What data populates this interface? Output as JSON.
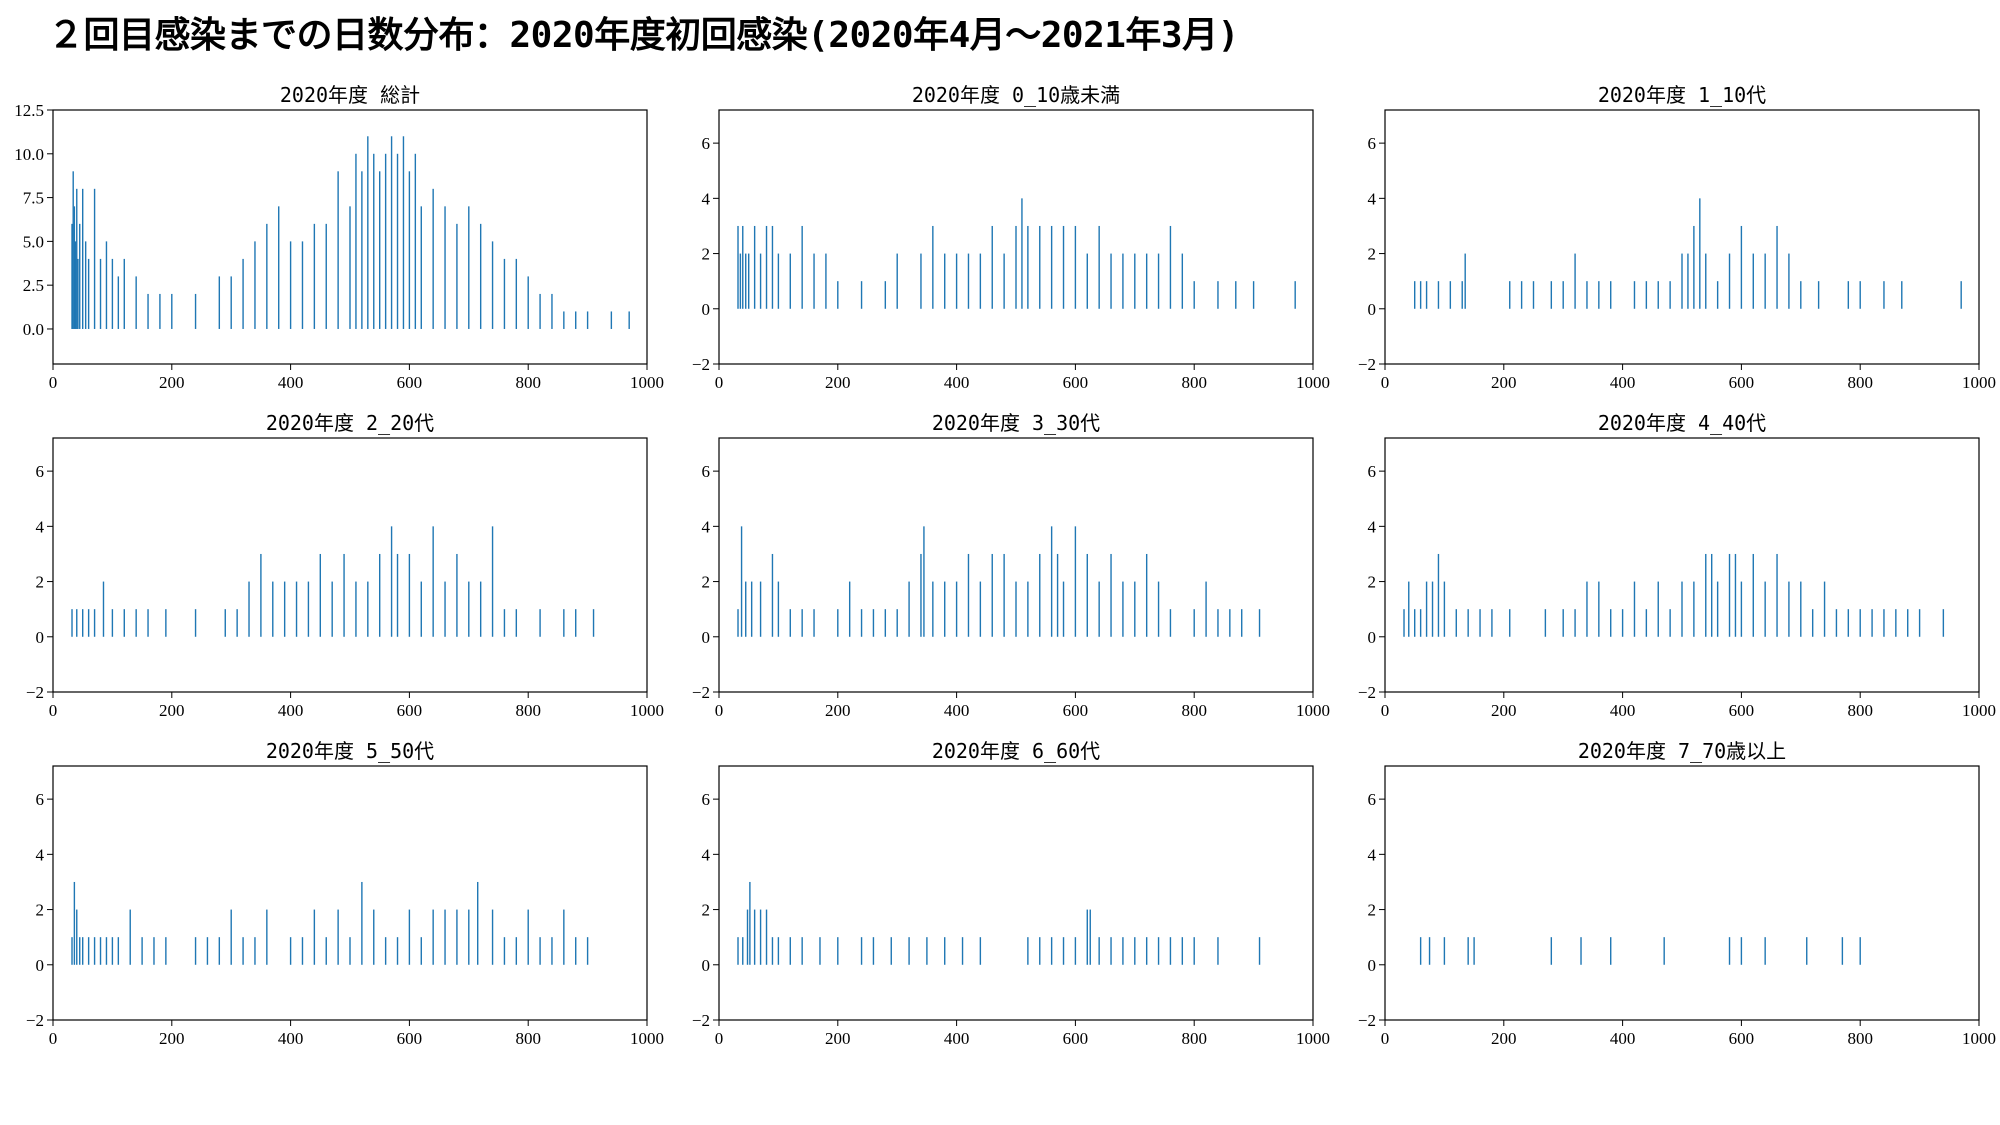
{
  "page": {
    "title": "２回目感染までの日数分布：2020年度初回感染(2020年4月～2021年3月)"
  },
  "colors": {
    "bar": "#1f77b4",
    "axis": "#000000"
  },
  "chart_data": [
    {
      "type": "bar",
      "title": "2020年度 総計",
      "xlim": [
        0,
        1000
      ],
      "ylim": [
        -2,
        12.5
      ],
      "xticks": [
        0,
        200,
        400,
        600,
        800,
        1000
      ],
      "xtick_labels": [
        "0",
        "200",
        "400",
        "600",
        "800",
        "1000"
      ],
      "yticks": [
        0,
        2.5,
        5,
        7.5,
        10,
        12.5
      ],
      "ytick_labels": [
        "0.0",
        "2.5",
        "5.0",
        "7.5",
        "10.0",
        "12.5"
      ],
      "x": [
        32,
        34,
        36,
        38,
        40,
        42,
        45,
        50,
        55,
        60,
        70,
        80,
        90,
        100,
        110,
        120,
        140,
        160,
        180,
        200,
        240,
        280,
        300,
        320,
        340,
        360,
        380,
        400,
        420,
        440,
        460,
        480,
        500,
        510,
        520,
        530,
        540,
        550,
        560,
        570,
        580,
        590,
        600,
        610,
        620,
        640,
        660,
        680,
        700,
        720,
        740,
        760,
        780,
        800,
        820,
        840,
        860,
        880,
        900,
        940,
        970
      ],
      "values": [
        6,
        9,
        7,
        5,
        8,
        4,
        6,
        8,
        5,
        4,
        8,
        4,
        5,
        4,
        3,
        4,
        3,
        2,
        2,
        2,
        2,
        3,
        3,
        4,
        5,
        6,
        7,
        5,
        5,
        6,
        6,
        9,
        7,
        10,
        9,
        11,
        10,
        9,
        10,
        11,
        10,
        11,
        9,
        10,
        7,
        8,
        7,
        6,
        7,
        6,
        5,
        4,
        4,
        3,
        2,
        2,
        1,
        1,
        1,
        1,
        1
      ]
    },
    {
      "type": "bar",
      "title": "2020年度 0_10歳未満",
      "xlim": [
        0,
        1000
      ],
      "ylim": [
        -2,
        7.2
      ],
      "xticks": [
        0,
        200,
        400,
        600,
        800,
        1000
      ],
      "xtick_labels": [
        "0",
        "200",
        "400",
        "600",
        "800",
        "1000"
      ],
      "yticks": [
        -2,
        0,
        2,
        4,
        6
      ],
      "ytick_labels": [
        "−2",
        "0",
        "2",
        "4",
        "6"
      ],
      "x": [
        32,
        36,
        40,
        45,
        50,
        60,
        70,
        80,
        90,
        100,
        120,
        140,
        160,
        180,
        200,
        240,
        280,
        300,
        340,
        360,
        380,
        400,
        420,
        440,
        460,
        480,
        500,
        510,
        520,
        540,
        560,
        580,
        600,
        620,
        640,
        660,
        680,
        700,
        720,
        740,
        760,
        780,
        800,
        840,
        870,
        900,
        970
      ],
      "values": [
        3,
        2,
        3,
        2,
        2,
        3,
        2,
        3,
        3,
        2,
        2,
        3,
        2,
        2,
        1,
        1,
        1,
        2,
        2,
        3,
        2,
        2,
        2,
        2,
        3,
        2,
        3,
        4,
        3,
        3,
        3,
        3,
        3,
        2,
        3,
        2,
        2,
        2,
        2,
        2,
        3,
        2,
        1,
        1,
        1,
        1,
        1
      ]
    },
    {
      "type": "bar",
      "title": "2020年度 1_10代",
      "xlim": [
        0,
        1000
      ],
      "ylim": [
        -2,
        7.2
      ],
      "xticks": [
        0,
        200,
        400,
        600,
        800,
        1000
      ],
      "xtick_labels": [
        "0",
        "200",
        "400",
        "600",
        "800",
        "1000"
      ],
      "yticks": [
        -2,
        0,
        2,
        4,
        6
      ],
      "ytick_labels": [
        "−2",
        "0",
        "2",
        "4",
        "6"
      ],
      "x": [
        50,
        60,
        70,
        90,
        110,
        130,
        135,
        210,
        230,
        250,
        280,
        300,
        320,
        340,
        360,
        380,
        420,
        440,
        460,
        480,
        500,
        510,
        520,
        530,
        540,
        560,
        580,
        600,
        620,
        640,
        660,
        680,
        700,
        730,
        780,
        800,
        840,
        870,
        970
      ],
      "values": [
        1,
        1,
        1,
        1,
        1,
        1,
        2,
        1,
        1,
        1,
        1,
        1,
        2,
        1,
        1,
        1,
        1,
        1,
        1,
        1,
        2,
        2,
        3,
        4,
        2,
        1,
        2,
        3,
        2,
        2,
        3,
        2,
        1,
        1,
        1,
        1,
        1,
        1,
        1
      ]
    },
    {
      "type": "bar",
      "title": "2020年度 2_20代",
      "xlim": [
        0,
        1000
      ],
      "ylim": [
        -2,
        7.2
      ],
      "xticks": [
        0,
        200,
        400,
        600,
        800,
        1000
      ],
      "xtick_labels": [
        "0",
        "200",
        "400",
        "600",
        "800",
        "1000"
      ],
      "yticks": [
        -2,
        0,
        2,
        4,
        6
      ],
      "ytick_labels": [
        "−2",
        "0",
        "2",
        "4",
        "6"
      ],
      "x": [
        32,
        40,
        50,
        60,
        70,
        85,
        100,
        120,
        140,
        160,
        190,
        240,
        290,
        310,
        330,
        350,
        370,
        390,
        410,
        430,
        450,
        470,
        490,
        510,
        530,
        550,
        570,
        580,
        600,
        620,
        640,
        660,
        680,
        700,
        720,
        740,
        760,
        780,
        820,
        860,
        880,
        910
      ],
      "values": [
        1,
        1,
        1,
        1,
        1,
        2,
        1,
        1,
        1,
        1,
        1,
        1,
        1,
        1,
        2,
        3,
        2,
        2,
        2,
        2,
        3,
        2,
        3,
        2,
        2,
        3,
        4,
        3,
        3,
        2,
        4,
        2,
        3,
        2,
        2,
        4,
        1,
        1,
        1,
        1,
        1,
        1
      ]
    },
    {
      "type": "bar",
      "title": "2020年度 3_30代",
      "xlim": [
        0,
        1000
      ],
      "ylim": [
        -2,
        7.2
      ],
      "xticks": [
        0,
        200,
        400,
        600,
        800,
        1000
      ],
      "xtick_labels": [
        "0",
        "200",
        "400",
        "600",
        "800",
        "1000"
      ],
      "yticks": [
        -2,
        0,
        2,
        4,
        6
      ],
      "ytick_labels": [
        "−2",
        "0",
        "2",
        "4",
        "6"
      ],
      "x": [
        32,
        38,
        45,
        55,
        70,
        90,
        100,
        120,
        140,
        160,
        200,
        220,
        240,
        260,
        280,
        300,
        320,
        340,
        345,
        360,
        380,
        400,
        420,
        440,
        460,
        480,
        500,
        520,
        540,
        560,
        570,
        580,
        600,
        620,
        640,
        660,
        680,
        700,
        720,
        740,
        760,
        800,
        820,
        840,
        860,
        880,
        910
      ],
      "values": [
        1,
        4,
        2,
        2,
        2,
        3,
        2,
        1,
        1,
        1,
        1,
        2,
        1,
        1,
        1,
        1,
        2,
        3,
        4,
        2,
        2,
        2,
        3,
        2,
        3,
        3,
        2,
        2,
        3,
        4,
        3,
        2,
        4,
        3,
        2,
        3,
        2,
        2,
        3,
        2,
        1,
        1,
        2,
        1,
        1,
        1,
        1
      ]
    },
    {
      "type": "bar",
      "title": "2020年度 4_40代",
      "xlim": [
        0,
        1000
      ],
      "ylim": [
        -2,
        7.2
      ],
      "xticks": [
        0,
        200,
        400,
        600,
        800,
        1000
      ],
      "xtick_labels": [
        "0",
        "200",
        "400",
        "600",
        "800",
        "1000"
      ],
      "yticks": [
        -2,
        0,
        2,
        4,
        6
      ],
      "ytick_labels": [
        "−2",
        "0",
        "2",
        "4",
        "6"
      ],
      "x": [
        32,
        40,
        50,
        60,
        70,
        80,
        90,
        100,
        120,
        140,
        160,
        180,
        210,
        270,
        300,
        320,
        340,
        360,
        380,
        400,
        420,
        440,
        460,
        480,
        500,
        520,
        540,
        550,
        560,
        580,
        590,
        600,
        620,
        640,
        660,
        680,
        700,
        720,
        740,
        760,
        780,
        800,
        820,
        840,
        860,
        880,
        900,
        940
      ],
      "values": [
        1,
        2,
        1,
        1,
        2,
        2,
        3,
        2,
        1,
        1,
        1,
        1,
        1,
        1,
        1,
        1,
        2,
        2,
        1,
        1,
        2,
        1,
        2,
        1,
        2,
        2,
        3,
        3,
        2,
        3,
        3,
        2,
        3,
        2,
        3,
        2,
        2,
        1,
        2,
        1,
        1,
        1,
        1,
        1,
        1,
        1,
        1,
        1
      ]
    },
    {
      "type": "bar",
      "title": "2020年度 5_50代",
      "xlim": [
        0,
        1000
      ],
      "ylim": [
        -2,
        7.2
      ],
      "xticks": [
        0,
        200,
        400,
        600,
        800,
        1000
      ],
      "xtick_labels": [
        "0",
        "200",
        "400",
        "600",
        "800",
        "1000"
      ],
      "yticks": [
        -2,
        0,
        2,
        4,
        6
      ],
      "ytick_labels": [
        "−2",
        "0",
        "2",
        "4",
        "6"
      ],
      "x": [
        32,
        36,
        40,
        45,
        50,
        60,
        70,
        80,
        90,
        100,
        110,
        130,
        150,
        170,
        190,
        240,
        260,
        280,
        300,
        320,
        340,
        360,
        400,
        420,
        440,
        460,
        480,
        500,
        520,
        540,
        560,
        580,
        600,
        620,
        640,
        660,
        680,
        700,
        715,
        740,
        760,
        780,
        800,
        820,
        840,
        860,
        880,
        900
      ],
      "values": [
        1,
        3,
        2,
        1,
        1,
        1,
        1,
        1,
        1,
        1,
        1,
        2,
        1,
        1,
        1,
        1,
        1,
        1,
        2,
        1,
        1,
        2,
        1,
        1,
        2,
        1,
        2,
        1,
        3,
        2,
        1,
        1,
        2,
        1,
        2,
        2,
        2,
        2,
        3,
        2,
        1,
        1,
        2,
        1,
        1,
        2,
        1,
        1
      ]
    },
    {
      "type": "bar",
      "title": "2020年度 6_60代",
      "xlim": [
        0,
        1000
      ],
      "ylim": [
        -2,
        7.2
      ],
      "xticks": [
        0,
        200,
        400,
        600,
        800,
        1000
      ],
      "xtick_labels": [
        "0",
        "200",
        "400",
        "600",
        "800",
        "1000"
      ],
      "yticks": [
        -2,
        0,
        2,
        4,
        6
      ],
      "ytick_labels": [
        "−2",
        "0",
        "2",
        "4",
        "6"
      ],
      "x": [
        32,
        40,
        48,
        52,
        60,
        70,
        80,
        90,
        100,
        120,
        140,
        170,
        200,
        240,
        260,
        290,
        320,
        350,
        380,
        410,
        440,
        520,
        540,
        560,
        580,
        600,
        620,
        625,
        640,
        660,
        680,
        700,
        720,
        740,
        760,
        780,
        800,
        840,
        910
      ],
      "values": [
        1,
        1,
        2,
        3,
        2,
        2,
        2,
        1,
        1,
        1,
        1,
        1,
        1,
        1,
        1,
        1,
        1,
        1,
        1,
        1,
        1,
        1,
        1,
        1,
        1,
        1,
        2,
        2,
        1,
        1,
        1,
        1,
        1,
        1,
        1,
        1,
        1,
        1,
        1
      ]
    },
    {
      "type": "bar",
      "title": "2020年度 7_70歳以上",
      "xlim": [
        0,
        1000
      ],
      "ylim": [
        -2,
        7.2
      ],
      "xticks": [
        0,
        200,
        400,
        600,
        800,
        1000
      ],
      "xtick_labels": [
        "0",
        "200",
        "400",
        "600",
        "800",
        "1000"
      ],
      "yticks": [
        -2,
        0,
        2,
        4,
        6
      ],
      "ytick_labels": [
        "−2",
        "0",
        "2",
        "4",
        "6"
      ],
      "x": [
        60,
        75,
        100,
        140,
        150,
        280,
        330,
        380,
        470,
        580,
        600,
        640,
        710,
        770,
        800
      ],
      "values": [
        1,
        1,
        1,
        1,
        1,
        1,
        1,
        1,
        1,
        1,
        1,
        1,
        1,
        1,
        1
      ]
    }
  ]
}
